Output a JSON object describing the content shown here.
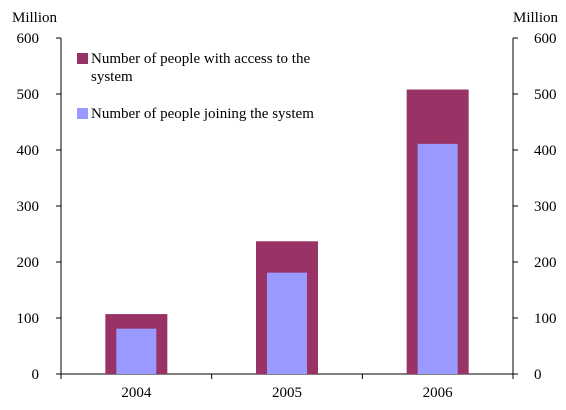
{
  "chart_data": {
    "type": "bar",
    "title": "",
    "xlabel": "",
    "ylabel": "",
    "y_unit_left": "Million",
    "y_unit_right": "Million",
    "categories": [
      "2004",
      "2005",
      "2006"
    ],
    "ylim": [
      0,
      600
    ],
    "yticks": [
      0,
      100,
      200,
      300,
      400,
      500,
      600
    ],
    "grid": false,
    "legend_position": "top-left",
    "overlap": true,
    "series": [
      {
        "name": "Number of people with access to the system",
        "legend_lines": [
          "Number of people with access to the",
          "system"
        ],
        "values": [
          107,
          237,
          508
        ],
        "color": "#993366"
      },
      {
        "name": "Number of people joining the system",
        "legend_lines": [
          "Number of people joining the system"
        ],
        "values": [
          81,
          181,
          411
        ],
        "color": "#9999ff"
      }
    ]
  }
}
